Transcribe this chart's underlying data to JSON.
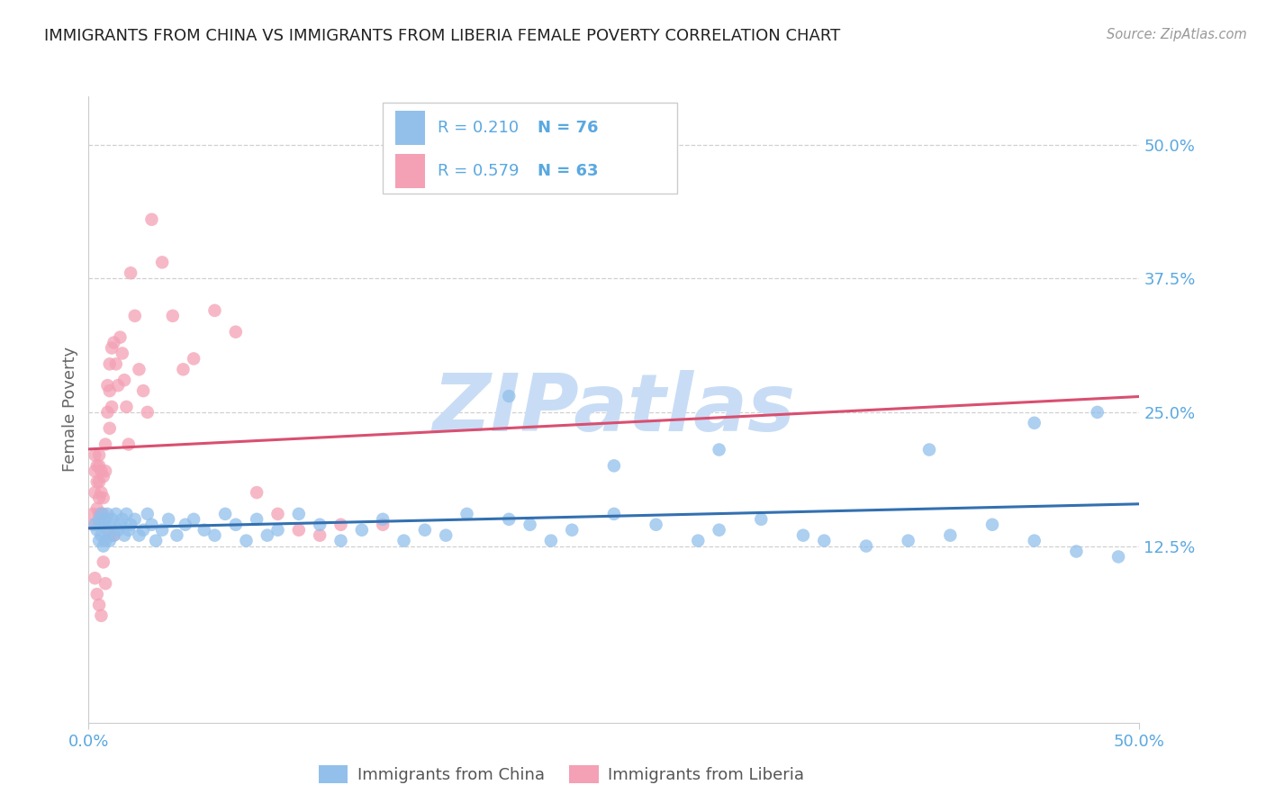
{
  "title": "IMMIGRANTS FROM CHINA VS IMMIGRANTS FROM LIBERIA FEMALE POVERTY CORRELATION CHART",
  "source": "Source: ZipAtlas.com",
  "ylabel": "Female Poverty",
  "ytick_values": [
    0.5,
    0.375,
    0.25,
    0.125
  ],
  "xlim": [
    0.0,
    0.5
  ],
  "ylim": [
    -0.04,
    0.545
  ],
  "china_color": "#92c0eb",
  "liberia_color": "#f4a0b5",
  "china_line_color": "#3370b0",
  "liberia_line_color": "#d94f70",
  "china_R": 0.21,
  "china_N": 76,
  "liberia_R": 0.579,
  "liberia_N": 63,
  "tick_color": "#5aa8e0",
  "watermark_color": "#c8ddf5",
  "background_color": "#ffffff",
  "grid_color": "#d0d0d0",
  "china_scatter_x": [
    0.003,
    0.004,
    0.005,
    0.005,
    0.006,
    0.006,
    0.007,
    0.007,
    0.008,
    0.008,
    0.009,
    0.009,
    0.01,
    0.01,
    0.011,
    0.012,
    0.013,
    0.014,
    0.015,
    0.016,
    0.017,
    0.018,
    0.019,
    0.02,
    0.022,
    0.024,
    0.026,
    0.028,
    0.03,
    0.032,
    0.035,
    0.038,
    0.042,
    0.046,
    0.05,
    0.055,
    0.06,
    0.065,
    0.07,
    0.075,
    0.08,
    0.085,
    0.09,
    0.1,
    0.11,
    0.12,
    0.13,
    0.14,
    0.15,
    0.16,
    0.17,
    0.18,
    0.2,
    0.21,
    0.22,
    0.23,
    0.25,
    0.27,
    0.29,
    0.3,
    0.32,
    0.34,
    0.35,
    0.37,
    0.39,
    0.41,
    0.43,
    0.45,
    0.47,
    0.49,
    0.2,
    0.25,
    0.3,
    0.4,
    0.45,
    0.48
  ],
  "china_scatter_y": [
    0.145,
    0.14,
    0.13,
    0.15,
    0.135,
    0.155,
    0.125,
    0.145,
    0.13,
    0.15,
    0.14,
    0.155,
    0.13,
    0.145,
    0.15,
    0.135,
    0.155,
    0.14,
    0.145,
    0.15,
    0.135,
    0.155,
    0.14,
    0.145,
    0.15,
    0.135,
    0.14,
    0.155,
    0.145,
    0.13,
    0.14,
    0.15,
    0.135,
    0.145,
    0.15,
    0.14,
    0.135,
    0.155,
    0.145,
    0.13,
    0.15,
    0.135,
    0.14,
    0.155,
    0.145,
    0.13,
    0.14,
    0.15,
    0.13,
    0.14,
    0.135,
    0.155,
    0.15,
    0.145,
    0.13,
    0.14,
    0.155,
    0.145,
    0.13,
    0.14,
    0.15,
    0.135,
    0.13,
    0.125,
    0.13,
    0.135,
    0.145,
    0.13,
    0.12,
    0.115,
    0.265,
    0.2,
    0.215,
    0.215,
    0.24,
    0.25
  ],
  "liberia_scatter_x": [
    0.002,
    0.002,
    0.003,
    0.003,
    0.003,
    0.004,
    0.004,
    0.004,
    0.005,
    0.005,
    0.005,
    0.005,
    0.005,
    0.005,
    0.006,
    0.006,
    0.006,
    0.007,
    0.007,
    0.007,
    0.008,
    0.008,
    0.009,
    0.009,
    0.01,
    0.01,
    0.01,
    0.011,
    0.011,
    0.012,
    0.013,
    0.014,
    0.015,
    0.016,
    0.017,
    0.018,
    0.019,
    0.02,
    0.022,
    0.024,
    0.026,
    0.028,
    0.03,
    0.035,
    0.04,
    0.045,
    0.05,
    0.06,
    0.07,
    0.08,
    0.09,
    0.1,
    0.11,
    0.12,
    0.14,
    0.003,
    0.004,
    0.005,
    0.006,
    0.007,
    0.008,
    0.01,
    0.012
  ],
  "liberia_scatter_y": [
    0.155,
    0.145,
    0.21,
    0.195,
    0.175,
    0.2,
    0.185,
    0.16,
    0.21,
    0.2,
    0.185,
    0.17,
    0.155,
    0.145,
    0.195,
    0.175,
    0.155,
    0.19,
    0.17,
    0.155,
    0.22,
    0.195,
    0.275,
    0.25,
    0.295,
    0.27,
    0.235,
    0.31,
    0.255,
    0.315,
    0.295,
    0.275,
    0.32,
    0.305,
    0.28,
    0.255,
    0.22,
    0.38,
    0.34,
    0.29,
    0.27,
    0.25,
    0.43,
    0.39,
    0.34,
    0.29,
    0.3,
    0.345,
    0.325,
    0.175,
    0.155,
    0.14,
    0.135,
    0.145,
    0.145,
    0.095,
    0.08,
    0.07,
    0.06,
    0.11,
    0.09,
    0.135,
    0.135
  ]
}
